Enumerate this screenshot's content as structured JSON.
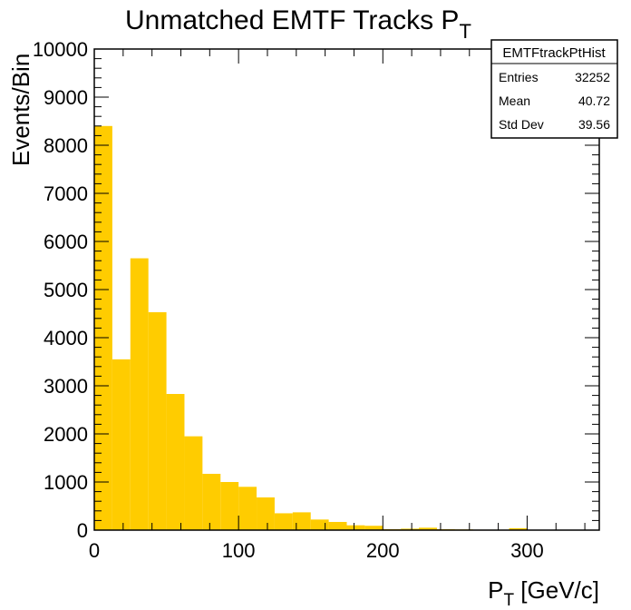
{
  "chart_data": {
    "type": "bar",
    "title_main": "Unmatched EMTF Tracks P",
    "title_sub": "T",
    "xlabel_main": "P",
    "xlabel_sub": "T",
    "xlabel_rest": " [GeV/c]",
    "ylabel": "Events/Bin",
    "xlim": [
      0,
      350
    ],
    "ylim": [
      0,
      10000
    ],
    "bin_width": 12.5,
    "values": [
      8400,
      3550,
      5650,
      4530,
      2830,
      1950,
      1170,
      1000,
      900,
      680,
      350,
      370,
      220,
      170,
      100,
      90,
      20,
      30,
      50,
      20,
      15,
      10,
      10,
      40,
      5,
      5,
      5,
      5
    ],
    "x_ticks": [
      "0",
      "100",
      "200",
      "300"
    ],
    "y_ticks": [
      "0",
      "1000",
      "2000",
      "3000",
      "4000",
      "5000",
      "6000",
      "7000",
      "8000",
      "9000",
      "10000"
    ],
    "bar_color": "#ffcc00",
    "grid": false,
    "legend": "none",
    "stats_box": {
      "name": "EMTFtrackPtHist",
      "rows": [
        {
          "label": "Entries",
          "value": "32252"
        },
        {
          "label": "Mean",
          "value": "40.72"
        },
        {
          "label": "Std Dev",
          "value": "39.56"
        }
      ],
      "position": "top-right"
    }
  }
}
